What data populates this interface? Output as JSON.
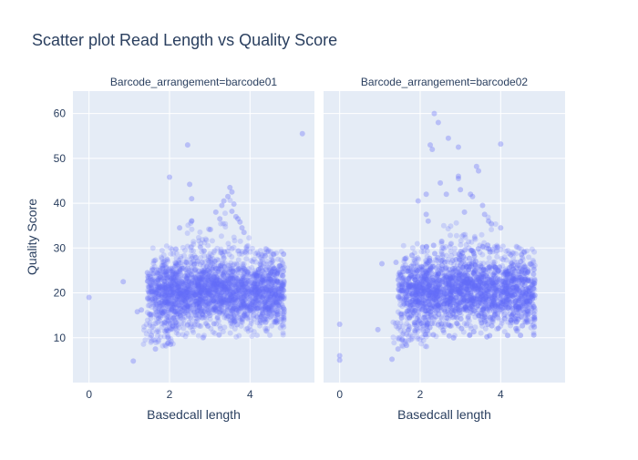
{
  "chart_data": {
    "type": "scatter",
    "title": "Scatter plot Read Length vs Quality Score",
    "ylabel": "Quality Score",
    "ylim": [
      0,
      65
    ],
    "yticks": [
      10,
      20,
      30,
      40,
      50,
      60
    ],
    "grid": true,
    "colors": {
      "plot_bg": "#e5ecf6",
      "grid": "#ffffff",
      "marker": "#636efa",
      "text": "#2a3f5f"
    },
    "facets": [
      {
        "title": "Barcode_arrangement=barcode01",
        "xlabel": "Basedcall length",
        "xlim": [
          -0.4,
          5.6
        ],
        "xticks": [
          0,
          2,
          4
        ],
        "core": {
          "x_range": [
            1.8,
            4.7
          ],
          "y_range": [
            11.5,
            29
          ],
          "density": "very high"
        },
        "outliers": [
          {
            "x": 0.0,
            "y": 19
          },
          {
            "x": 0.85,
            "y": 22.5
          },
          {
            "x": 1.1,
            "y": 4.8
          },
          {
            "x": 1.2,
            "y": 15.8
          },
          {
            "x": 1.3,
            "y": 16.2
          },
          {
            "x": 1.45,
            "y": 24.5
          },
          {
            "x": 1.55,
            "y": 10.5
          },
          {
            "x": 1.65,
            "y": 7.5
          },
          {
            "x": 2.0,
            "y": 45.8
          },
          {
            "x": 2.25,
            "y": 34.5
          },
          {
            "x": 2.45,
            "y": 53
          },
          {
            "x": 2.5,
            "y": 44.2
          },
          {
            "x": 2.55,
            "y": 41
          },
          {
            "x": 2.55,
            "y": 36
          },
          {
            "x": 3.15,
            "y": 38
          },
          {
            "x": 3.25,
            "y": 36.5
          },
          {
            "x": 3.3,
            "y": 39.5
          },
          {
            "x": 3.35,
            "y": 40.5
          },
          {
            "x": 3.45,
            "y": 41.5
          },
          {
            "x": 3.5,
            "y": 43.5
          },
          {
            "x": 3.55,
            "y": 42.5
          },
          {
            "x": 3.55,
            "y": 38.2
          },
          {
            "x": 3.6,
            "y": 39.8
          },
          {
            "x": 3.65,
            "y": 37
          },
          {
            "x": 3.7,
            "y": 36.5
          },
          {
            "x": 3.75,
            "y": 35.8
          },
          {
            "x": 3.8,
            "y": 34.5
          },
          {
            "x": 3.85,
            "y": 33.5
          },
          {
            "x": 4.7,
            "y": 25
          },
          {
            "x": 5.3,
            "y": 55.5
          }
        ]
      },
      {
        "title": "Barcode_arrangement=barcode02",
        "xlabel": "Basedcall length",
        "xlim": [
          -0.4,
          5.6
        ],
        "xticks": [
          0,
          2,
          4
        ],
        "core": {
          "x_range": [
            1.8,
            4.7
          ],
          "y_range": [
            11.5,
            29.5
          ],
          "density": "very high"
        },
        "outliers": [
          {
            "x": 0.0,
            "y": 13
          },
          {
            "x": 0.0,
            "y": 6
          },
          {
            "x": 0.0,
            "y": 5
          },
          {
            "x": 0.95,
            "y": 11.8
          },
          {
            "x": 1.05,
            "y": 26.5
          },
          {
            "x": 1.3,
            "y": 5.2
          },
          {
            "x": 1.45,
            "y": 7.5
          },
          {
            "x": 1.4,
            "y": 26.8
          },
          {
            "x": 1.55,
            "y": 9.5
          },
          {
            "x": 1.95,
            "y": 40.5
          },
          {
            "x": 2.15,
            "y": 42
          },
          {
            "x": 2.15,
            "y": 37.5
          },
          {
            "x": 2.2,
            "y": 36
          },
          {
            "x": 2.25,
            "y": 53
          },
          {
            "x": 2.3,
            "y": 52
          },
          {
            "x": 2.35,
            "y": 60
          },
          {
            "x": 2.45,
            "y": 58
          },
          {
            "x": 2.5,
            "y": 44.5
          },
          {
            "x": 2.65,
            "y": 42
          },
          {
            "x": 2.7,
            "y": 54.5
          },
          {
            "x": 2.95,
            "y": 46
          },
          {
            "x": 2.95,
            "y": 45.5
          },
          {
            "x": 2.95,
            "y": 52.5
          },
          {
            "x": 3.0,
            "y": 43
          },
          {
            "x": 3.1,
            "y": 38
          },
          {
            "x": 3.25,
            "y": 42
          },
          {
            "x": 3.3,
            "y": 41.5
          },
          {
            "x": 3.4,
            "y": 48.2
          },
          {
            "x": 3.45,
            "y": 47.2
          },
          {
            "x": 3.55,
            "y": 39.5
          },
          {
            "x": 3.6,
            "y": 37.5
          },
          {
            "x": 3.7,
            "y": 36
          },
          {
            "x": 4.0,
            "y": 53.2
          },
          {
            "x": 4.0,
            "y": 34.5
          },
          {
            "x": 4.25,
            "y": 28.5
          }
        ]
      }
    ]
  }
}
